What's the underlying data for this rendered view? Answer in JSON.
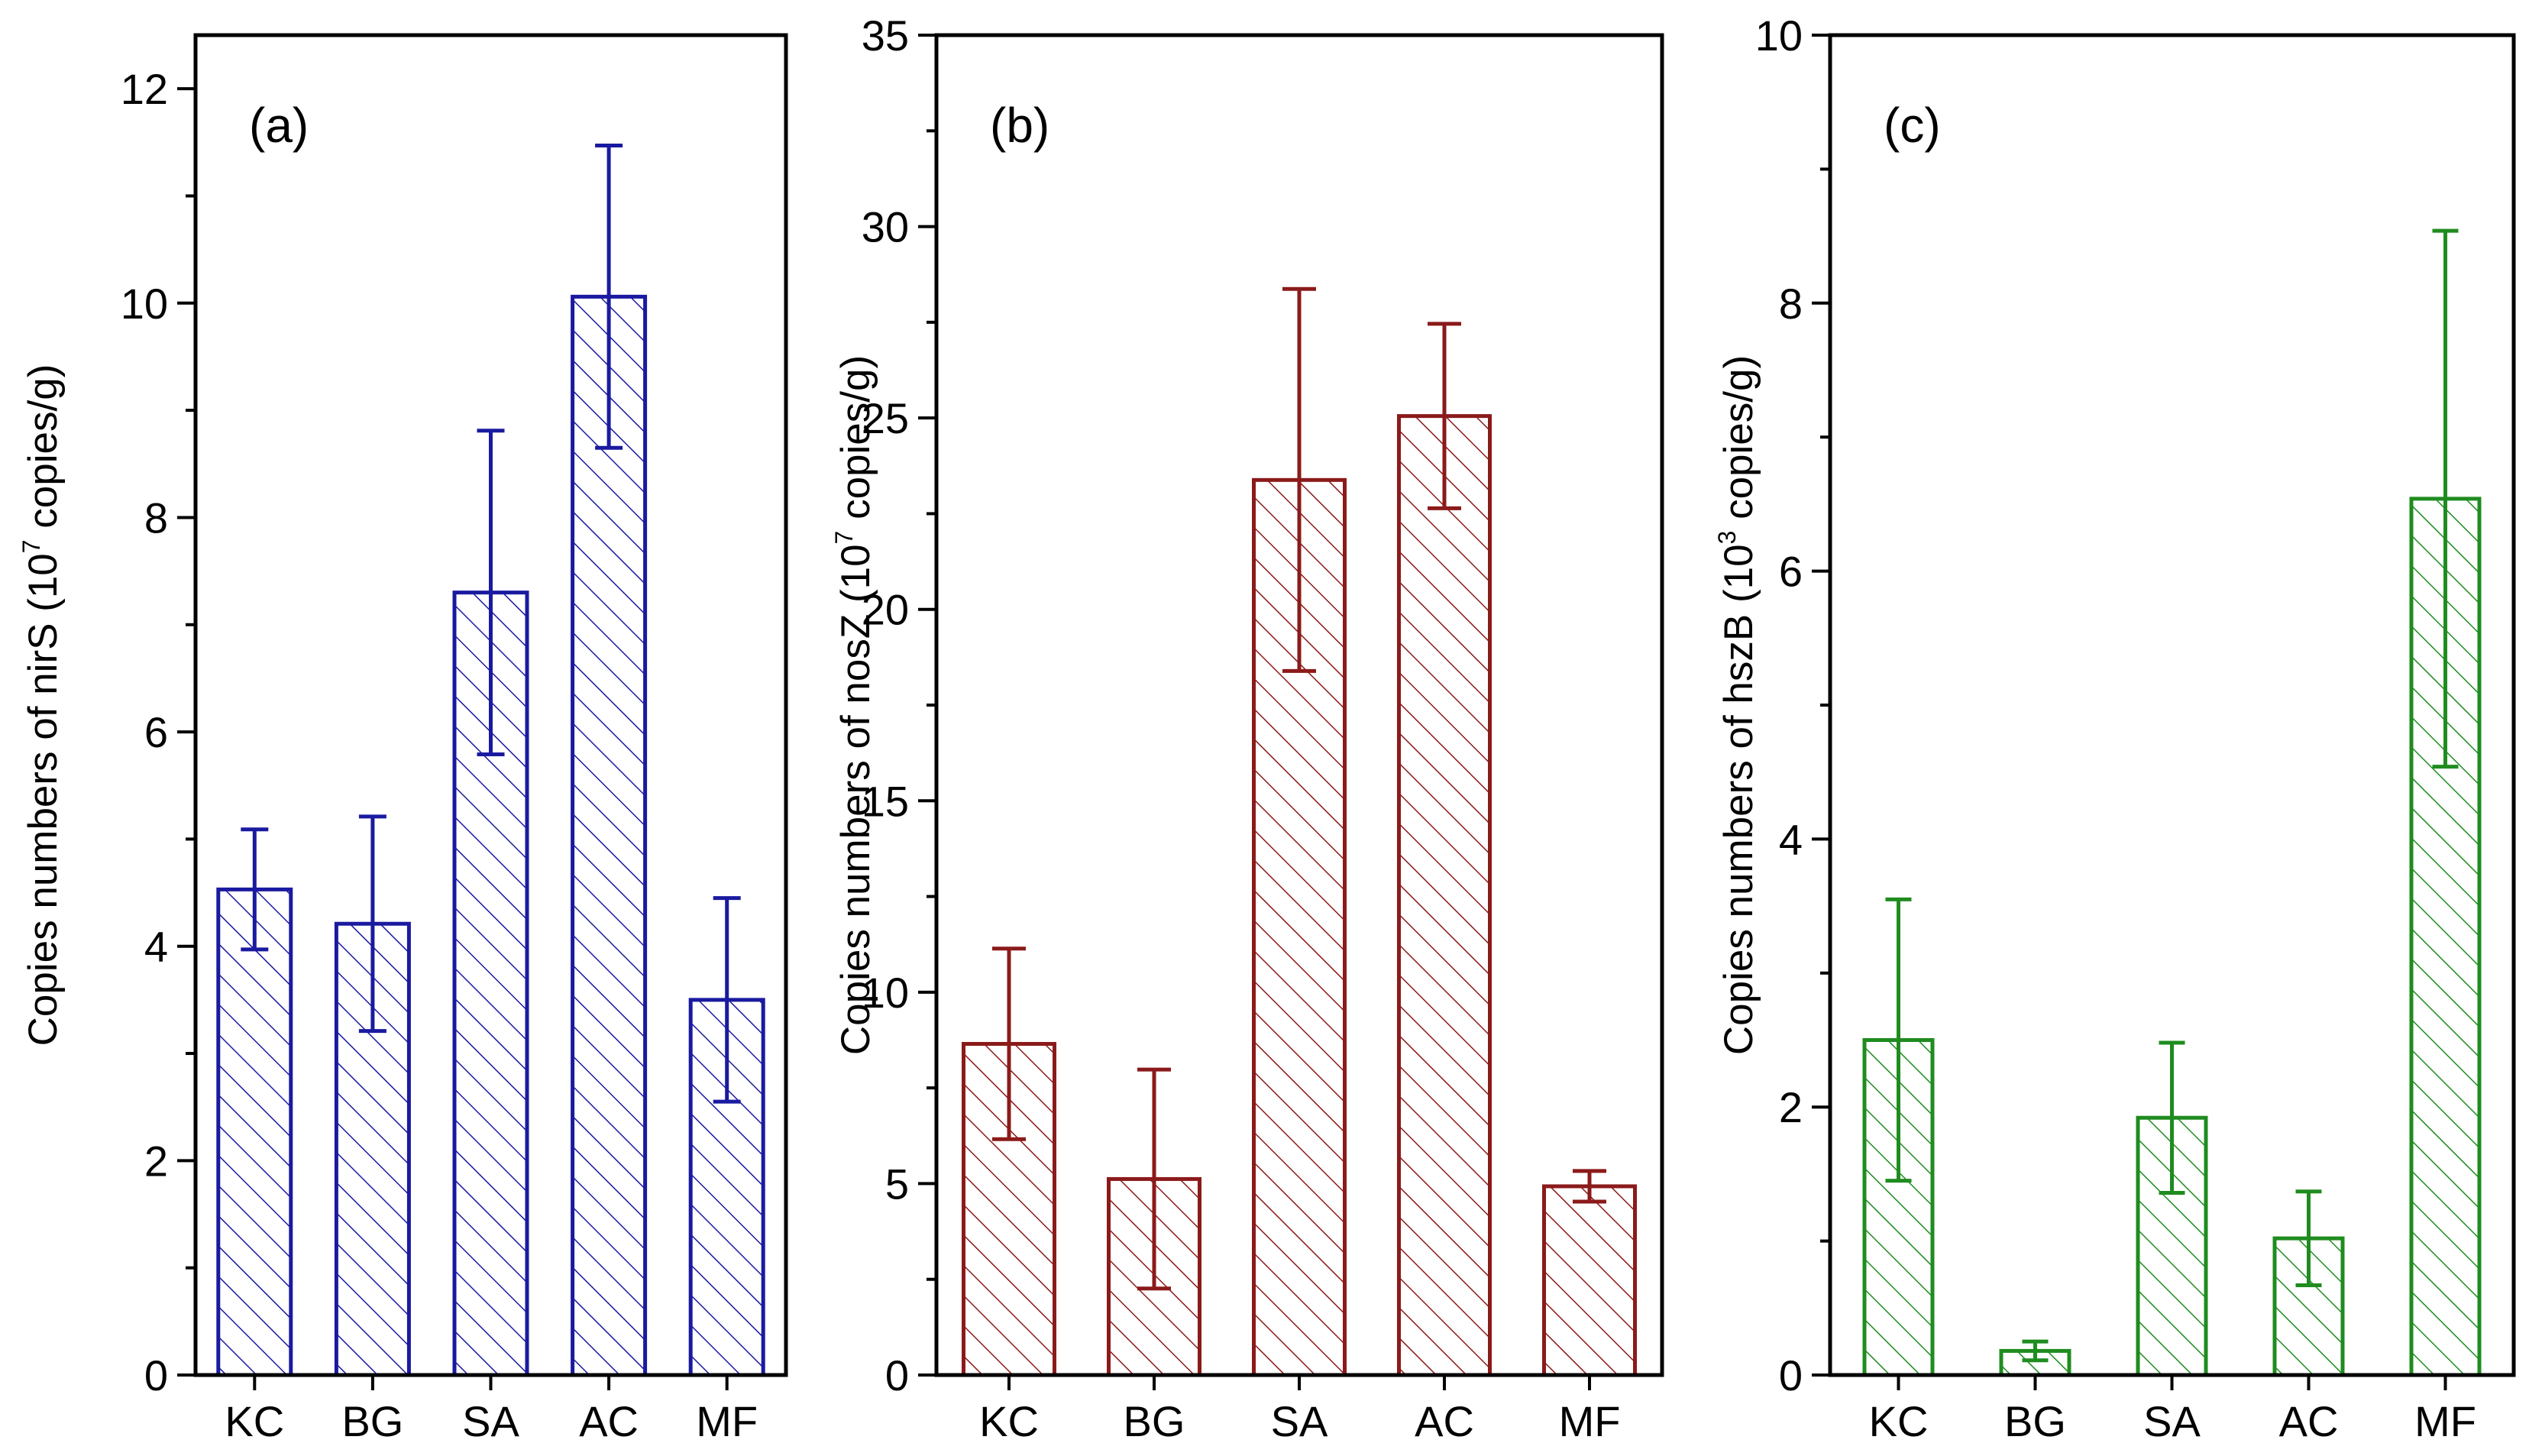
{
  "chart_data": [
    {
      "type": "bar",
      "panel_label": "(a)",
      "categories": [
        "KC",
        "BG",
        "SA",
        "AC",
        "MF"
      ],
      "values": [
        4.53,
        4.21,
        7.3,
        10.06,
        3.5
      ],
      "errors": [
        0.56,
        1.0,
        1.51,
        1.41,
        0.95
      ],
      "ylabel_prefix": "Copies numbers of nirS (10",
      "ylabel_exp": "7",
      "ylabel_suffix": " copies/g)",
      "ylim": [
        0,
        12.5
      ],
      "yticks": [
        0,
        2,
        4,
        6,
        8,
        10,
        12
      ],
      "ytick_labels": [
        "0",
        "2",
        "4",
        "6",
        "8",
        "10",
        "12"
      ],
      "color": "#1a1aa0",
      "pattern": "hatched"
    },
    {
      "type": "bar",
      "panel_label": "(b)",
      "categories": [
        "KC",
        "BG",
        "SA",
        "AC",
        "MF"
      ],
      "values": [
        8.65,
        5.12,
        23.38,
        25.05,
        4.93
      ],
      "errors": [
        2.49,
        2.86,
        4.99,
        2.41,
        0.4
      ],
      "ylabel_prefix": "Copies numbers of nosZ (10",
      "ylabel_exp": "7",
      "ylabel_suffix": " copies/g)",
      "ylim": [
        0,
        35
      ],
      "yticks": [
        0,
        5,
        10,
        15,
        20,
        25,
        30,
        35
      ],
      "ytick_labels": [
        "0",
        "5",
        "10",
        "15",
        "20",
        "25",
        "30",
        "35"
      ],
      "color": "#8b1a1a",
      "pattern": "hatched"
    },
    {
      "type": "bar",
      "panel_label": "(c)",
      "categories": [
        "KC",
        "BG",
        "SA",
        "AC",
        "MF"
      ],
      "values": [
        2.5,
        0.18,
        1.92,
        1.02,
        6.54
      ],
      "errors": [
        1.05,
        0.07,
        0.56,
        0.35,
        2.0
      ],
      "ylabel_prefix": "Copies numbers of hszB (10",
      "ylabel_exp": "3",
      "ylabel_suffix": " copies/g)",
      "ylim": [
        0,
        10
      ],
      "yticks": [
        0,
        2,
        4,
        6,
        8,
        10
      ],
      "ytick_labels": [
        "0",
        "2",
        "4",
        "6",
        "8",
        "10"
      ],
      "color": "#1f8c1f",
      "pattern": "hatched"
    }
  ]
}
